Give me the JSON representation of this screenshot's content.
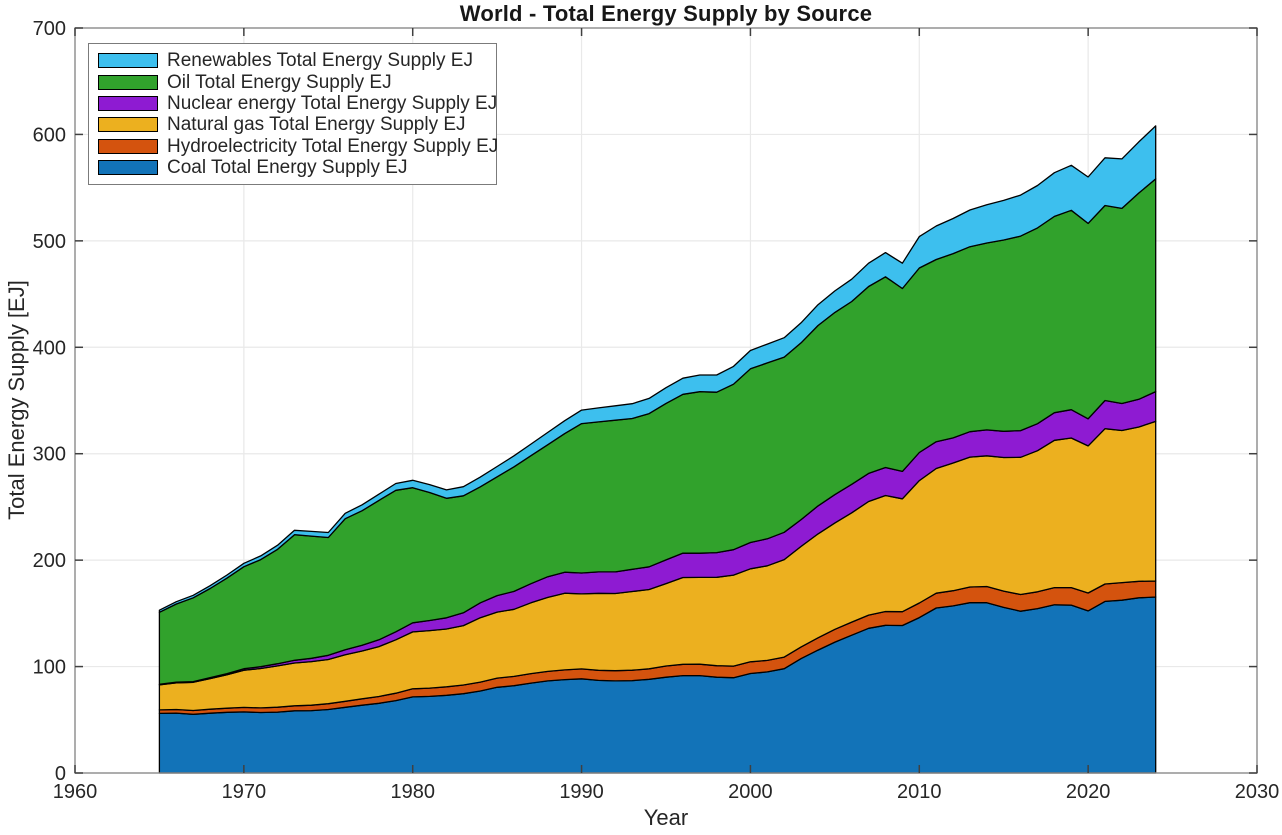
{
  "chart_data": {
    "type": "area",
    "stacked": true,
    "title": "World - Total Energy Supply by Source",
    "xlabel": "Year",
    "ylabel": "Total Energy Supply [EJ]",
    "xlim": [
      1960,
      2030
    ],
    "ylim": [
      0,
      700
    ],
    "xticks": [
      1960,
      1970,
      1980,
      1990,
      2000,
      2010,
      2020,
      2030
    ],
    "yticks": [
      0,
      100,
      200,
      300,
      400,
      500,
      600,
      700
    ],
    "grid": true,
    "legend_position": "top-left",
    "legend_order_note": "legend lists series top-of-stack first",
    "axis_color": "#8a8a8a",
    "tick_color": "#404040",
    "grid_color": "#e9e9e9",
    "edge_color": "#000000",
    "text_color": "#262626",
    "x": [
      1965,
      1966,
      1967,
      1968,
      1969,
      1970,
      1971,
      1972,
      1973,
      1974,
      1975,
      1976,
      1977,
      1978,
      1979,
      1980,
      1981,
      1982,
      1983,
      1984,
      1985,
      1986,
      1987,
      1988,
      1989,
      1990,
      1991,
      1992,
      1993,
      1994,
      1995,
      1996,
      1997,
      1998,
      1999,
      2000,
      2001,
      2002,
      2003,
      2004,
      2005,
      2006,
      2007,
      2008,
      2009,
      2010,
      2011,
      2012,
      2013,
      2014,
      2015,
      2016,
      2017,
      2018,
      2019,
      2020,
      2021,
      2022,
      2023,
      2024
    ],
    "series": [
      {
        "name": "coal",
        "label": "Coal Total Energy Supply EJ",
        "color": "#1273b8",
        "values": [
          56,
          56.3,
          55.2,
          56.2,
          57,
          57.4,
          56.8,
          57.2,
          58.4,
          58.6,
          59.7,
          61.7,
          63.7,
          65.5,
          68,
          71.5,
          72,
          73,
          74.5,
          77,
          80.5,
          82,
          84.5,
          86.5,
          87.8,
          88.5,
          87,
          86.5,
          86.8,
          88,
          90,
          91.5,
          91.5,
          90,
          89.5,
          93.5,
          95,
          98,
          107.5,
          115.5,
          123,
          129.5,
          136,
          138.8,
          138.6,
          146,
          155,
          157,
          160,
          160,
          155.6,
          152,
          154.5,
          158,
          157.8,
          152.3,
          161.2,
          162.4,
          164.6,
          165.4
        ]
      },
      {
        "name": "hydroelectricity",
        "label": "Hydroelectricity Total Energy Supply EJ",
        "color": "#d4530e",
        "values": [
          3.3,
          3.4,
          3.5,
          3.7,
          3.9,
          4.2,
          4.4,
          4.6,
          4.7,
          5.1,
          5.4,
          5.7,
          6,
          6.4,
          7,
          7.6,
          7.8,
          8,
          8.2,
          8.4,
          8.7,
          8.8,
          8.9,
          9,
          9.1,
          9.3,
          9.5,
          9.6,
          9.8,
          9.9,
          10.5,
          10.6,
          10.7,
          10.8,
          10.9,
          11,
          10.8,
          10.9,
          11,
          11.5,
          12,
          12.3,
          12.4,
          12.9,
          13,
          13.7,
          13.9,
          14.3,
          14.8,
          15.2,
          15.3,
          15.7,
          15.8,
          16.2,
          16.4,
          16.8,
          16.4,
          16.5,
          15.5,
          15
        ]
      },
      {
        "name": "natural-gas",
        "label": "Natural gas Total Energy Supply EJ",
        "color": "#ecb01f",
        "values": [
          23.5,
          25,
          26.5,
          28.8,
          31.4,
          35,
          37,
          38.8,
          40.3,
          41,
          41.5,
          43.7,
          44.9,
          46.9,
          50.2,
          53.5,
          54,
          54.3,
          55.8,
          60.5,
          62,
          63,
          66.5,
          69.5,
          72,
          70.5,
          72.3,
          72.6,
          73.9,
          74.5,
          77.5,
          81.6,
          81.6,
          83.1,
          85.5,
          87.4,
          88.9,
          91.6,
          94.4,
          97.7,
          100,
          102.7,
          106.7,
          109,
          106,
          115,
          117.2,
          120,
          122,
          122.8,
          125.5,
          128.9,
          132.5,
          138.4,
          140.6,
          138.2,
          145.9,
          142.9,
          145,
          150
        ]
      },
      {
        "name": "nuclear",
        "label": "Nuclear energy Total Energy Supply EJ",
        "color": "#8e1bd2",
        "values": [
          0.5,
          0.6,
          0.7,
          0.9,
          1.1,
          1.4,
          1.7,
          2.1,
          2.5,
          3.1,
          4,
          4.7,
          5.5,
          6.4,
          7.5,
          8.5,
          9.5,
          10.5,
          12,
          14,
          15.5,
          16.8,
          18,
          19.4,
          19.8,
          19.6,
          20.2,
          20.3,
          20.9,
          21.3,
          22.2,
          22.9,
          22.7,
          23.2,
          23.9,
          24.7,
          25.4,
          25.7,
          25.2,
          26.3,
          26.6,
          26.8,
          26.4,
          26.3,
          25.8,
          26.4,
          25.2,
          23.6,
          23.9,
          24.4,
          24.7,
          25.1,
          25.4,
          25.9,
          26.6,
          25.5,
          26.5,
          25.4,
          26,
          28
        ]
      },
      {
        "name": "oil",
        "label": "Oil Total Energy Supply EJ",
        "color": "#31a22c",
        "values": [
          67.7,
          73.5,
          78.7,
          83.8,
          89.7,
          95.8,
          100.6,
          107.5,
          118,
          114.8,
          110.7,
          123.1,
          126.4,
          130.9,
          132.9,
          127,
          120.3,
          112.3,
          110,
          109,
          111.6,
          117.1,
          120.2,
          124.1,
          130.2,
          140.4,
          140.9,
          142.5,
          141.7,
          144,
          147.1,
          149.2,
          151.8,
          150.7,
          155.5,
          163.2,
          165.2,
          164.6,
          166.1,
          169.5,
          171.2,
          171.7,
          175.6,
          179.2,
          171.8,
          173.4,
          171.2,
          173.1,
          173.8,
          175.6,
          179.7,
          182.8,
          184,
          184.5,
          187.3,
          183.6,
          183.2,
          183.3,
          193.9,
          199.8
        ]
      },
      {
        "name": "renewables",
        "label": "Renewables Total Energy Supply EJ",
        "color": "#3dbfee",
        "values": [
          2,
          2.2,
          2.4,
          2.6,
          2.9,
          3.2,
          3.5,
          3.8,
          4.1,
          4.4,
          4.7,
          5.1,
          5.5,
          5.9,
          6.4,
          6.9,
          7.4,
          7.9,
          8.5,
          9.1,
          9.7,
          10.3,
          10.9,
          11.5,
          12.1,
          12.7,
          13.1,
          13.5,
          13.9,
          14.3,
          14.7,
          15.2,
          15.7,
          16.2,
          16.7,
          17.2,
          17.7,
          18.2,
          18.8,
          19.5,
          20.2,
          21,
          21.9,
          22.8,
          23.8,
          29.5,
          31.5,
          33,
          34.5,
          36,
          37.2,
          38.5,
          39.8,
          41,
          42.3,
          43.6,
          44.8,
          46.5,
          48,
          49.8
        ]
      }
    ]
  }
}
